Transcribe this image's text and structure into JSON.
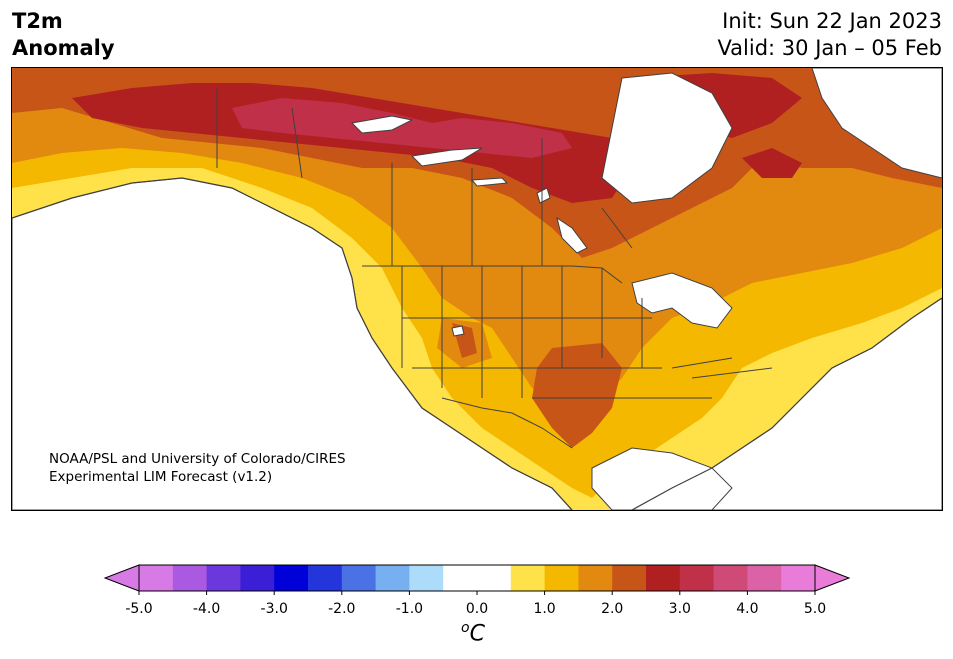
{
  "header": {
    "variable_line1": "T2m",
    "variable_line2": "Anomaly",
    "init_text": "Init: Sun 22 Jan 2023",
    "valid_text": "Valid: 30 Jan – 05 Feb"
  },
  "credit": {
    "line1": "NOAA/PSL and University of Colorado/CIRES",
    "line2": "Experimental LIM Forecast (v1.2)"
  },
  "map": {
    "region": "North America",
    "variable": "2-meter temperature anomaly",
    "pattern": "warm anomalies across Canada, CONUS and Alaska southeast coast; strongest (3–4 °C) over northern Canada and Hudson Bay area; 2–3 °C over Oklahoma/Texas and eastern Canada"
  },
  "colorbar": {
    "unit_o": "o",
    "unit_c": "C",
    "tick_labels": [
      "-5.0",
      "-4.0",
      "-3.0",
      "-2.0",
      "-1.0",
      "0.0",
      "1.0",
      "2.0",
      "3.0",
      "4.0",
      "5.0"
    ],
    "levels": [
      -5.0,
      -4.5,
      -4.0,
      -3.5,
      -3.0,
      -2.5,
      -2.0,
      -1.5,
      -1.0,
      -0.5,
      0.5,
      1.0,
      1.5,
      2.0,
      2.5,
      3.0,
      3.5,
      4.0,
      4.5,
      5.0
    ],
    "colors": [
      "#d77ae6",
      "#a95ae0",
      "#6a38dc",
      "#3a1fd6",
      "#0000d8",
      "#2535dc",
      "#4b72e4",
      "#77b0f0",
      "#acdcfa",
      "#ffffff",
      "#ffe24a",
      "#f5b800",
      "#e28a10",
      "#c85518",
      "#b02020",
      "#c03048",
      "#d04a78",
      "#dc62a8",
      "#e97cd8"
    ],
    "under_color": "#d77ae6",
    "over_color": "#e97cd8"
  }
}
